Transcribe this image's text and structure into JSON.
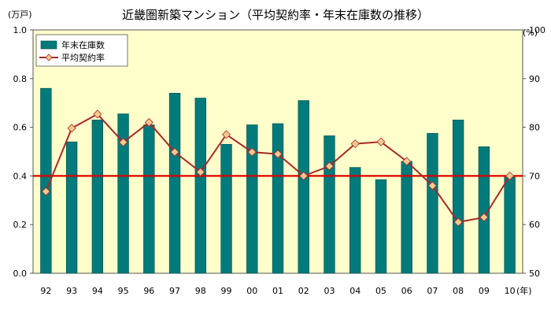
{
  "chart_data": {
    "type": "bar+line",
    "title": "近畿圏新築マンション（平均契約率・年末在庫数の推移）",
    "categories": [
      "92",
      "93",
      "94",
      "95",
      "96",
      "97",
      "98",
      "99",
      "00",
      "01",
      "02",
      "03",
      "04",
      "05",
      "06",
      "07",
      "08",
      "09",
      "10"
    ],
    "x_unit": "(年)",
    "series": [
      {
        "name": "年末在庫数",
        "type": "bar",
        "axis": "left",
        "color": "#007A7A",
        "values": [
          0.76,
          0.54,
          0.63,
          0.655,
          0.61,
          0.74,
          0.72,
          0.53,
          0.61,
          0.615,
          0.71,
          0.565,
          0.435,
          0.385,
          0.46,
          0.575,
          0.63,
          0.52,
          0.395
        ]
      },
      {
        "name": "平均契約率",
        "type": "line",
        "axis": "right",
        "color": "#A52A2A",
        "marker_color": "#F4C98F",
        "values": [
          66.8,
          79.8,
          82.7,
          76.9,
          81.0,
          74.9,
          70.8,
          78.5,
          74.9,
          74.5,
          70.0,
          72.0,
          76.6,
          77.0,
          73.0,
          68.0,
          60.5,
          61.5,
          70.0
        ]
      }
    ],
    "y_left": {
      "unit": "(万戸)",
      "min": 0,
      "max": 1.0,
      "ticks": [
        "0.0",
        "0.2",
        "0.4",
        "0.6",
        "0.8",
        "1.0"
      ]
    },
    "y_right": {
      "unit": "(%)",
      "min": 50,
      "max": 100,
      "ticks": [
        "50",
        "60",
        "70",
        "80",
        "90",
        "100"
      ]
    },
    "reference_line": {
      "axis": "right",
      "value": 70,
      "color": "#E00000"
    },
    "legend": {
      "placement": "top-left"
    },
    "background": "#FFFFCC",
    "grid": false
  }
}
